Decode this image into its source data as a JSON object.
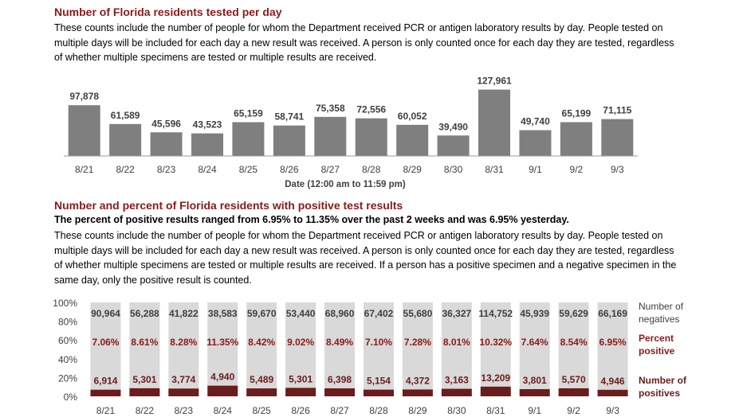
{
  "section1": {
    "title": "Number of Florida residents tested per day",
    "description": "These counts include the number of people for whom the Department received PCR or antigen laboratory results by day. People tested on multiple days will be included for each day a new result was received. A person is only counted once for each day they are tested, regardless of whether multiple specimens are tested or multiple results are received."
  },
  "section2": {
    "title": "Number and percent of Florida residents with positive test results",
    "summary": "The percent of positive results ranged from 6.95% to 11.35% over the past 2 weeks and was 6.95% yesterday.",
    "description": "These counts include the number of people for whom the Department received PCR or antigen laboratory results by day. People tested on multiple days will be included for each day a new result was received. A person is only counted once for each day they are tested, regardless of whether multiple specimens are tested or multiple results are received. If a person has a positive specimen and a negative specimen in the same day, only the positive result is counted."
  },
  "chart_data": [
    {
      "type": "bar",
      "categories": [
        "8/21",
        "8/22",
        "8/23",
        "8/24",
        "8/25",
        "8/26",
        "8/27",
        "8/28",
        "8/29",
        "8/30",
        "8/31",
        "9/1",
        "9/2",
        "9/3"
      ],
      "values": [
        97878,
        61589,
        45596,
        43523,
        65159,
        58741,
        75358,
        72556,
        60052,
        39490,
        127961,
        49740,
        65199,
        71115
      ],
      "value_labels": [
        "97,878",
        "61,589",
        "45,596",
        "43,523",
        "65,159",
        "58,741",
        "75,358",
        "72,556",
        "60,052",
        "39,490",
        "127,961",
        "49,740",
        "65,199",
        "71,115"
      ],
      "xlabel": "Date (12:00 am to 11:59 pm)",
      "ylim": [
        0,
        135000
      ],
      "colors": {
        "bar": "#7f7f7f",
        "axis": "#999999"
      }
    },
    {
      "type": "bar",
      "stacked": true,
      "percent": true,
      "categories": [
        "8/21",
        "8/22",
        "8/23",
        "8/24",
        "8/25",
        "8/26",
        "8/27",
        "8/28",
        "8/29",
        "8/30",
        "8/31",
        "9/1",
        "9/2",
        "9/3"
      ],
      "yticks": [
        "100%",
        "80%",
        "60%",
        "40%",
        "20%",
        "0%"
      ],
      "series": [
        {
          "name": "Number of negatives",
          "values": [
            90964,
            56288,
            41822,
            38583,
            59670,
            53440,
            68960,
            67402,
            55680,
            36327,
            114752,
            45939,
            59629,
            66169
          ],
          "labels": [
            "90,964",
            "56,288",
            "41,822",
            "38,583",
            "59,670",
            "53,440",
            "68,960",
            "67,402",
            "55,680",
            "36,327",
            "114,752",
            "45,939",
            "59,629",
            "66,169"
          ],
          "color": "#d9d9d9"
        },
        {
          "name": "Number of positives",
          "values": [
            6914,
            5301,
            3774,
            4940,
            5489,
            5301,
            6398,
            5154,
            4372,
            3163,
            13209,
            3801,
            5570,
            4946
          ],
          "labels": [
            "6,914",
            "5,301",
            "3,774",
            "4,940",
            "5,489",
            "5,301",
            "6,398",
            "5,154",
            "4,372",
            "3,163",
            "13,209",
            "3,801",
            "5,570",
            "4,946"
          ],
          "color": "#6b1c1c"
        }
      ],
      "percent_positive": {
        "name": "Percent positive",
        "values": [
          7.06,
          8.61,
          8.28,
          11.35,
          8.42,
          9.02,
          8.49,
          7.1,
          7.28,
          8.01,
          10.32,
          7.64,
          8.54,
          6.95
        ],
        "labels": [
          "7.06%",
          "8.61%",
          "8.28%",
          "11.35%",
          "8.42%",
          "9.02%",
          "8.49%",
          "7.10%",
          "7.28%",
          "8.01%",
          "10.32%",
          "7.64%",
          "8.54%",
          "6.95%"
        ],
        "color": "#8b1a1a"
      },
      "legend": {
        "negatives": [
          "Number of",
          "negatives"
        ],
        "percent": [
          "Percent",
          "positive"
        ],
        "positives": [
          "Number of",
          "positives"
        ]
      }
    }
  ]
}
